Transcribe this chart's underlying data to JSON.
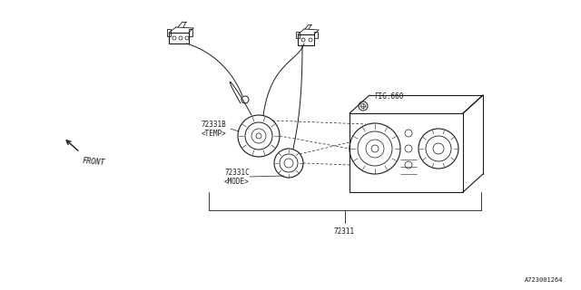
{
  "bg_color": "#ffffff",
  "line_color": "#1a1a1a",
  "text_color": "#1a1a1a",
  "fig_width": 6.4,
  "fig_height": 3.2,
  "dpi": 100,
  "labels": {
    "part_72311": "72311",
    "part_72331B": "72331B",
    "part_72331B_sub": "<TEMP>",
    "part_72331C": "72331C",
    "part_72331C_sub": "<MODE>",
    "fig660": "FIG.660",
    "front": "FRONT",
    "diagram_id": "A723001264"
  },
  "font_size_label": 5.5,
  "font_size_id": 5.0,
  "font_size_front": 6.0
}
